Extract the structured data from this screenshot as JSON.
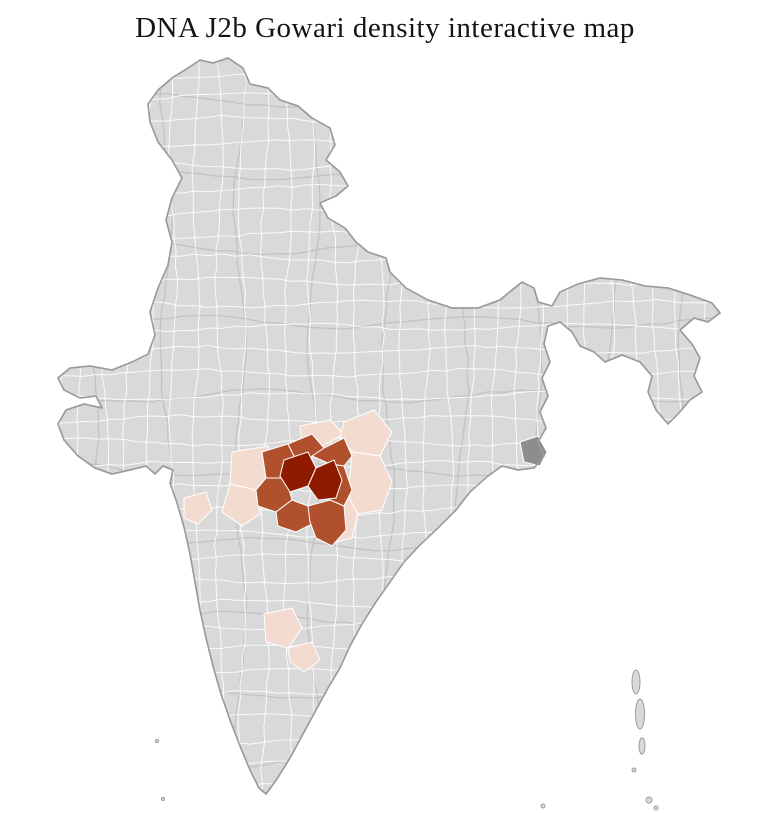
{
  "title": "DNA J2b Gowari density interactive map",
  "map": {
    "colors": {
      "background": "#ffffff",
      "base": "#d9d9d9",
      "country_border": "#9b9b9b",
      "state_border": "#c2c2c2",
      "district_border": "#ffffff",
      "levels": {
        "low": "#f3dccf",
        "medium": "#b1502c",
        "high": "#8e1b00",
        "gray": "#8d8d8d"
      }
    },
    "regions": {
      "d01": {
        "level": "low"
      },
      "d02": {
        "level": "low"
      },
      "d03": {
        "level": "low"
      },
      "d04": {
        "level": "low"
      },
      "d05": {
        "level": "low"
      },
      "d06": {
        "level": "low"
      },
      "d07": {
        "level": "low"
      },
      "d08": {
        "level": "low"
      },
      "d09": {
        "level": "low"
      },
      "d10": {
        "level": "medium"
      },
      "d11": {
        "level": "medium"
      },
      "d12": {
        "level": "medium"
      },
      "d13": {
        "level": "medium"
      },
      "d14": {
        "level": "medium"
      },
      "d15": {
        "level": "medium"
      },
      "d16": {
        "level": "medium"
      },
      "d17": {
        "level": "high"
      },
      "d18": {
        "level": "high"
      },
      "d19": {
        "level": "gray"
      }
    }
  }
}
